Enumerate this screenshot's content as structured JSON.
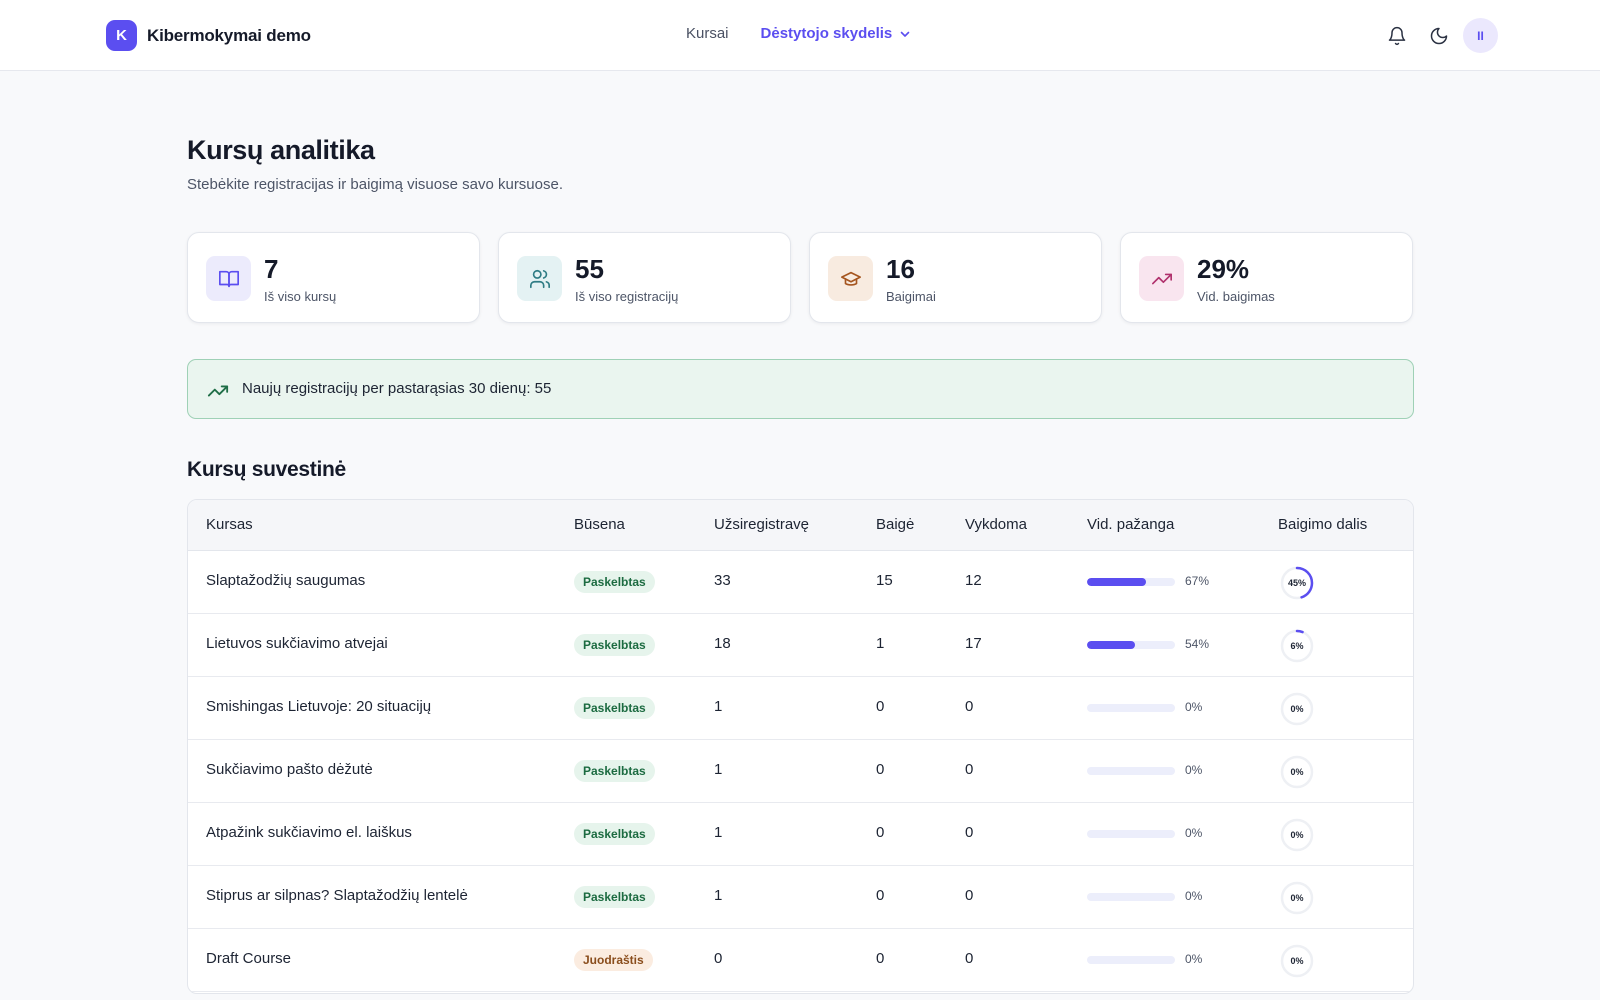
{
  "header": {
    "logo_letter": "K",
    "brand": "Kibermokymai demo",
    "nav": {
      "courses": "Kursai",
      "dashboard": "Dėstytojo skydelis"
    },
    "avatar_initials": "II"
  },
  "page": {
    "title": "Kursų analitika",
    "subtitle": "Stebėkite registracijas ir baigimą visuose savo kursuose."
  },
  "stats": [
    {
      "value": "7",
      "label": "Iš viso kursų",
      "icon": "book-icon"
    },
    {
      "value": "55",
      "label": "Iš viso registracijų",
      "icon": "users-icon"
    },
    {
      "value": "16",
      "label": "Baigimai",
      "icon": "graduation-cap-icon"
    },
    {
      "value": "29%",
      "label": "Vid. baigimas",
      "icon": "trending-up-icon"
    }
  ],
  "banner": {
    "text": "Naujų registracijų per pastarąsias 30 dienų: 55"
  },
  "summary": {
    "title": "Kursų suvestinė",
    "columns": [
      "Kursas",
      "Būsena",
      "Užsiregistravę",
      "Baigė",
      "Vykdoma",
      "Vid. pažanga",
      "Baigimo dalis"
    ],
    "rows": [
      {
        "course": "Slaptažodžių saugumas",
        "status": "Paskelbtas",
        "status_kind": "published",
        "enrolled": "33",
        "completed": "15",
        "in_progress": "12",
        "progress": 67,
        "progress_label": "67%",
        "completion": 45,
        "completion_label": "45%"
      },
      {
        "course": "Lietuvos sukčiavimo atvejai",
        "status": "Paskelbtas",
        "status_kind": "published",
        "enrolled": "18",
        "completed": "1",
        "in_progress": "17",
        "progress": 54,
        "progress_label": "54%",
        "completion": 6,
        "completion_label": "6%"
      },
      {
        "course": "Smishingas Lietuvoje: 20 situacijų",
        "status": "Paskelbtas",
        "status_kind": "published",
        "enrolled": "1",
        "completed": "0",
        "in_progress": "0",
        "progress": 0,
        "progress_label": "0%",
        "completion": 0,
        "completion_label": "0%"
      },
      {
        "course": "Sukčiavimo pašto dėžutė",
        "status": "Paskelbtas",
        "status_kind": "published",
        "enrolled": "1",
        "completed": "0",
        "in_progress": "0",
        "progress": 0,
        "progress_label": "0%",
        "completion": 0,
        "completion_label": "0%"
      },
      {
        "course": "Atpažink sukčiavimo el. laiškus",
        "status": "Paskelbtas",
        "status_kind": "published",
        "enrolled": "1",
        "completed": "0",
        "in_progress": "0",
        "progress": 0,
        "progress_label": "0%",
        "completion": 0,
        "completion_label": "0%"
      },
      {
        "course": "Stiprus ar silpnas? Slaptažodžių lentelė",
        "status": "Paskelbtas",
        "status_kind": "published",
        "enrolled": "1",
        "completed": "0",
        "in_progress": "0",
        "progress": 0,
        "progress_label": "0%",
        "completion": 0,
        "completion_label": "0%"
      },
      {
        "course": "Draft Course",
        "status": "Juodraštis",
        "status_kind": "draft",
        "enrolled": "0",
        "completed": "0",
        "in_progress": "0",
        "progress": 0,
        "progress_label": "0%",
        "completion": 0,
        "completion_label": "0%"
      }
    ]
  },
  "colors": {
    "accent": "#5b4ef0",
    "published_bg": "#e6f4ec",
    "draft_bg": "#fbece0",
    "banner_bg": "#eaf5ef"
  }
}
